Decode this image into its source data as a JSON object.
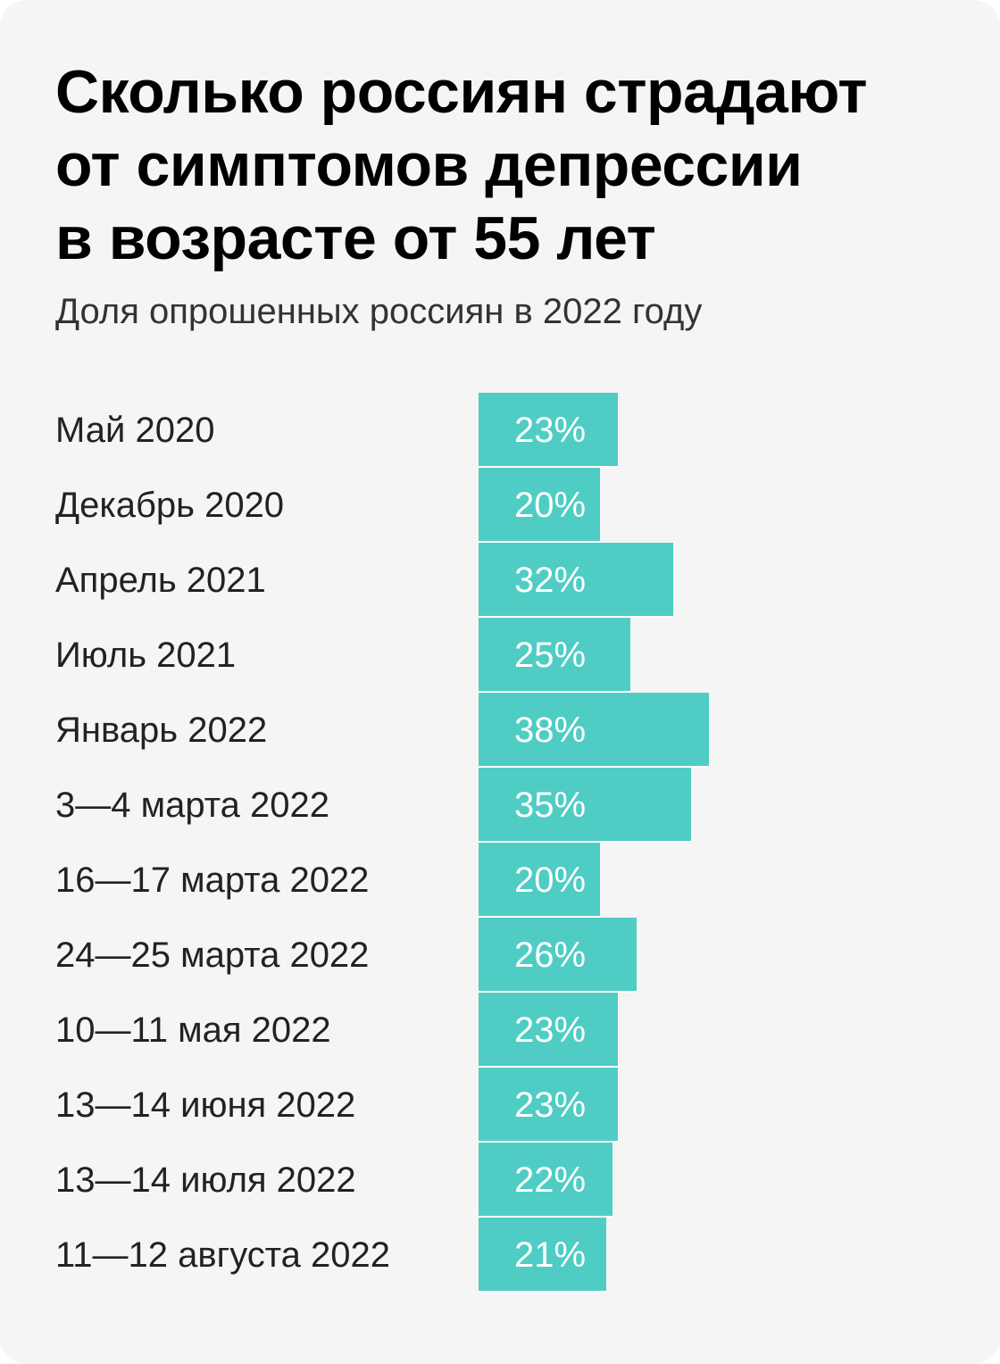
{
  "chart_data": {
    "type": "bar",
    "orientation": "horizontal",
    "title": "Сколько россиян страдают от симптомов депрессии в возрасте от 55 лет",
    "title_lines": [
      "Сколько россиян страдают",
      "от симптомов депрессии",
      "в возрасте от 55 лет"
    ],
    "subtitle": "Доля опрошенных россиян в 2022 году",
    "categories": [
      "Май 2020",
      "Декабрь 2020",
      "Апрель 2021",
      "Июль 2021",
      "Январь 2022",
      "3—4 марта 2022",
      "16—17 марта 2022",
      "24—25 марта 2022",
      "10—11 мая 2022",
      "13—14 июня 2022",
      "13—14 июля 2022",
      "11—12 августа 2022"
    ],
    "values": [
      23,
      20,
      32,
      25,
      38,
      35,
      20,
      26,
      23,
      23,
      22,
      21
    ],
    "value_labels": [
      "23%",
      "20%",
      "32%",
      "25%",
      "38%",
      "35%",
      "20%",
      "26%",
      "23%",
      "23%",
      "22%",
      "21%"
    ],
    "unit": "%",
    "xlim": [
      0,
      100
    ],
    "grid": false,
    "legend": "none",
    "colors": {
      "bar": "#4fcdc4",
      "label_in_bar": "#ffffff",
      "background": "#f5f5f5"
    }
  }
}
